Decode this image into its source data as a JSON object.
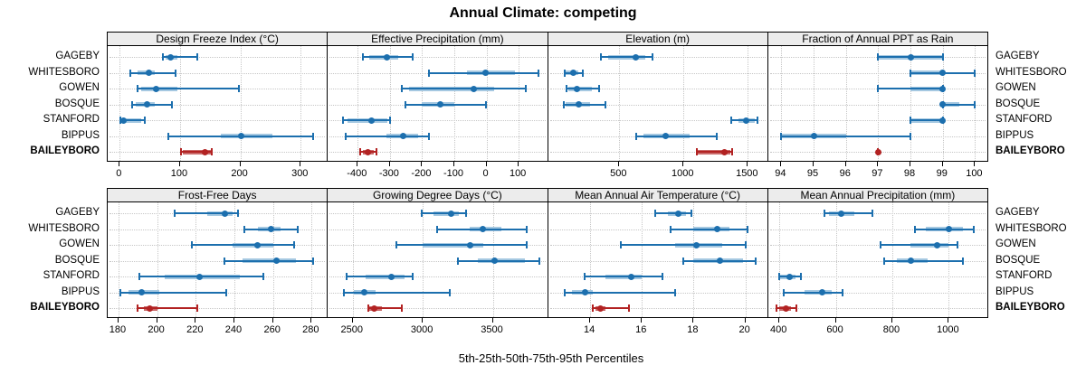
{
  "title": "Annual Climate: competing",
  "footer": "5th-25th-50th-75th-95th Percentiles",
  "stations": [
    "GAGEBY",
    "WHITESBORO",
    "GOWEN",
    "BOSQUE",
    "STANFORD",
    "BIPPUS",
    "BAILEYBORO"
  ],
  "highlight_station": "BAILEYBORO",
  "colors": {
    "normal_line": "#1c6fae",
    "normal_band": "#a5c8e1",
    "highlight_line": "#b22222",
    "highlight_band": "#c96a6a",
    "header_bg": "#ececec",
    "grid": "#c6c6c6",
    "border": "#000000"
  },
  "chart_data": [
    {
      "type": "percentile-dotplot",
      "title": "Design Freeze Index (°C)",
      "grid_row": 0,
      "grid_col": 0,
      "xlim": [
        -20,
        345
      ],
      "ticks": [
        0,
        100,
        200,
        300
      ],
      "series": [
        {
          "name": "GAGEBY",
          "percentiles": [
            72,
            76,
            85,
            96,
            128
          ]
        },
        {
          "name": "WHITESBORO",
          "percentiles": [
            18,
            29,
            48,
            58,
            93
          ]
        },
        {
          "name": "GOWEN",
          "percentiles": [
            29,
            36,
            61,
            96,
            198
          ]
        },
        {
          "name": "BOSQUE",
          "percentiles": [
            20,
            26,
            46,
            58,
            87
          ]
        },
        {
          "name": "STANFORD",
          "percentiles": [
            1,
            3,
            7,
            36,
            42
          ]
        },
        {
          "name": "BIPPUS",
          "percentiles": [
            80,
            168,
            202,
            253,
            321
          ]
        },
        {
          "name": "BAILEYBORO",
          "percentiles": [
            102,
            104,
            142,
            151,
            153
          ]
        }
      ]
    },
    {
      "type": "percentile-dotplot",
      "title": "Effective Precipitation (mm)",
      "grid_row": 0,
      "grid_col": 1,
      "xlim": [
        -493,
        191
      ],
      "ticks": [
        -400,
        -300,
        -200,
        -100,
        0,
        100
      ],
      "series": [
        {
          "name": "GAGEBY",
          "percentiles": [
            -385,
            -365,
            -310,
            -275,
            -230
          ]
        },
        {
          "name": "WHITESBORO",
          "percentiles": [
            -180,
            -60,
            -2,
            88,
            162
          ]
        },
        {
          "name": "GOWEN",
          "percentiles": [
            -263,
            -240,
            -40,
            23,
            123
          ]
        },
        {
          "name": "BOSQUE",
          "percentiles": [
            -252,
            -200,
            -144,
            -100,
            -2
          ]
        },
        {
          "name": "STANFORD",
          "percentiles": [
            -445,
            -432,
            -358,
            -307,
            -300
          ]
        },
        {
          "name": "BIPPUS",
          "percentiles": [
            -438,
            -310,
            -258,
            -212,
            -180
          ]
        },
        {
          "name": "BAILEYBORO",
          "percentiles": [
            -392,
            -385,
            -369,
            -350,
            -342
          ]
        }
      ]
    },
    {
      "type": "percentile-dotplot",
      "title": "Elevation (m)",
      "grid_row": 0,
      "grid_col": 2,
      "xlim": [
        -55,
        1658
      ],
      "ticks": [
        500,
        1000,
        1500
      ],
      "series": [
        {
          "name": "GAGEBY",
          "percentiles": [
            360,
            415,
            625,
            705,
            755
          ]
        },
        {
          "name": "WHITESBORO",
          "percentiles": [
            75,
            85,
            145,
            180,
            215
          ]
        },
        {
          "name": "GOWEN",
          "percentiles": [
            90,
            100,
            170,
            285,
            345
          ]
        },
        {
          "name": "BOSQUE",
          "percentiles": [
            65,
            85,
            185,
            270,
            395
          ]
        },
        {
          "name": "STANFORD",
          "percentiles": [
            1370,
            1430,
            1490,
            1555,
            1575
          ]
        },
        {
          "name": "BIPPUS",
          "percentiles": [
            635,
            685,
            860,
            1045,
            1255
          ]
        },
        {
          "name": "BAILEYBORO",
          "percentiles": [
            1100,
            1110,
            1315,
            1365,
            1380
          ]
        }
      ]
    },
    {
      "type": "percentile-dotplot",
      "title": "Fraction of Annual PPT as Rain",
      "grid_row": 0,
      "grid_col": 3,
      "xlim": [
        93.59,
        100.41
      ],
      "ticks": [
        94,
        95,
        96,
        97,
        98,
        99,
        100
      ],
      "series": [
        {
          "name": "GAGEBY",
          "percentiles": [
            97,
            97,
            98,
            99,
            99
          ]
        },
        {
          "name": "WHITESBORO",
          "percentiles": [
            98,
            98,
            99,
            99,
            100
          ]
        },
        {
          "name": "GOWEN",
          "percentiles": [
            97,
            98,
            99,
            99,
            99
          ]
        },
        {
          "name": "BOSQUE",
          "percentiles": [
            99,
            99,
            99,
            99.5,
            100
          ]
        },
        {
          "name": "STANFORD",
          "percentiles": [
            98,
            98,
            99,
            99,
            99
          ]
        },
        {
          "name": "BIPPUS",
          "percentiles": [
            94,
            94,
            95,
            96,
            98
          ]
        },
        {
          "name": "BAILEYBORO",
          "percentiles": [
            97,
            97,
            97,
            97,
            97
          ]
        }
      ]
    },
    {
      "type": "percentile-dotplot",
      "title": "Frost-Free Days",
      "grid_row": 1,
      "grid_col": 0,
      "xlim": [
        174.4,
        288.4
      ],
      "ticks": [
        180,
        200,
        220,
        240,
        260,
        280
      ],
      "series": [
        {
          "name": "GAGEBY",
          "percentiles": [
            209,
            226,
            235,
            239,
            242
          ]
        },
        {
          "name": "WHITESBORO",
          "percentiles": [
            245,
            252,
            259,
            264,
            273
          ]
        },
        {
          "name": "GOWEN",
          "percentiles": [
            218,
            239,
            252,
            260,
            271
          ]
        },
        {
          "name": "BOSQUE",
          "percentiles": [
            235,
            244,
            262,
            272,
            281
          ]
        },
        {
          "name": "STANFORD",
          "percentiles": [
            191,
            204,
            222,
            243,
            255
          ]
        },
        {
          "name": "BIPPUS",
          "percentiles": [
            181,
            185,
            192,
            201,
            236
          ]
        },
        {
          "name": "BAILEYBORO",
          "percentiles": [
            190,
            193,
            196,
            200,
            221
          ]
        }
      ]
    },
    {
      "type": "percentile-dotplot",
      "title": "Growing Degree Days (°C)",
      "grid_row": 1,
      "grid_col": 1,
      "xlim": [
        2322,
        3894
      ],
      "ticks": [
        2500,
        3000,
        3500
      ],
      "series": [
        {
          "name": "GAGEBY",
          "percentiles": [
            2990,
            3075,
            3200,
            3255,
            3310
          ]
        },
        {
          "name": "WHITESBORO",
          "percentiles": [
            3105,
            3335,
            3430,
            3560,
            3745
          ]
        },
        {
          "name": "GOWEN",
          "percentiles": [
            2810,
            3000,
            3340,
            3430,
            3745
          ]
        },
        {
          "name": "BOSQUE",
          "percentiles": [
            3250,
            3390,
            3515,
            3730,
            3830
          ]
        },
        {
          "name": "STANFORD",
          "percentiles": [
            2455,
            2590,
            2775,
            2870,
            2925
          ]
        },
        {
          "name": "BIPPUS",
          "percentiles": [
            2435,
            2510,
            2580,
            2660,
            3190
          ]
        },
        {
          "name": "BAILEYBORO",
          "percentiles": [
            2610,
            2620,
            2655,
            2710,
            2850
          ]
        }
      ]
    },
    {
      "type": "percentile-dotplot",
      "title": "Mean Annual Air Temperature (°C)",
      "grid_row": 1,
      "grid_col": 2,
      "xlim": [
        12.37,
        20.88
      ],
      "ticks": [
        14,
        16,
        18,
        20
      ],
      "series": [
        {
          "name": "GAGEBY",
          "percentiles": [
            16.5,
            17.0,
            17.4,
            17.7,
            17.9
          ]
        },
        {
          "name": "WHITESBORO",
          "percentiles": [
            17.1,
            18.0,
            18.9,
            19.4,
            20.1
          ]
        },
        {
          "name": "GOWEN",
          "percentiles": [
            15.2,
            17.3,
            18.1,
            19.1,
            20.0
          ]
        },
        {
          "name": "BOSQUE",
          "percentiles": [
            17.6,
            18.0,
            19.0,
            19.9,
            20.4
          ]
        },
        {
          "name": "STANFORD",
          "percentiles": [
            13.8,
            14.6,
            15.6,
            16.0,
            16.8
          ]
        },
        {
          "name": "BIPPUS",
          "percentiles": [
            13.0,
            13.3,
            13.8,
            14.1,
            17.3
          ]
        },
        {
          "name": "BAILEYBORO",
          "percentiles": [
            14.1,
            14.2,
            14.4,
            14.6,
            15.5
          ]
        }
      ]
    },
    {
      "type": "percentile-dotplot",
      "title": "Mean Annual Precipitation (mm)",
      "grid_row": 1,
      "grid_col": 3,
      "xlim": [
        360,
        1140
      ],
      "ticks": [
        400,
        600,
        800,
        1000
      ],
      "series": [
        {
          "name": "GAGEBY",
          "percentiles": [
            560,
            575,
            620,
            665,
            730
          ]
        },
        {
          "name": "WHITESBORO",
          "percentiles": [
            880,
            920,
            1000,
            1050,
            1090
          ]
        },
        {
          "name": "GOWEN",
          "percentiles": [
            760,
            865,
            960,
            1000,
            1030
          ]
        },
        {
          "name": "BOSQUE",
          "percentiles": [
            770,
            815,
            865,
            925,
            1050
          ]
        },
        {
          "name": "STANFORD",
          "percentiles": [
            398,
            403,
            437,
            456,
            475
          ]
        },
        {
          "name": "BIPPUS",
          "percentiles": [
            415,
            490,
            550,
            585,
            625
          ]
        },
        {
          "name": "BAILEYBORO",
          "percentiles": [
            390,
            398,
            423,
            440,
            460
          ]
        }
      ]
    }
  ]
}
